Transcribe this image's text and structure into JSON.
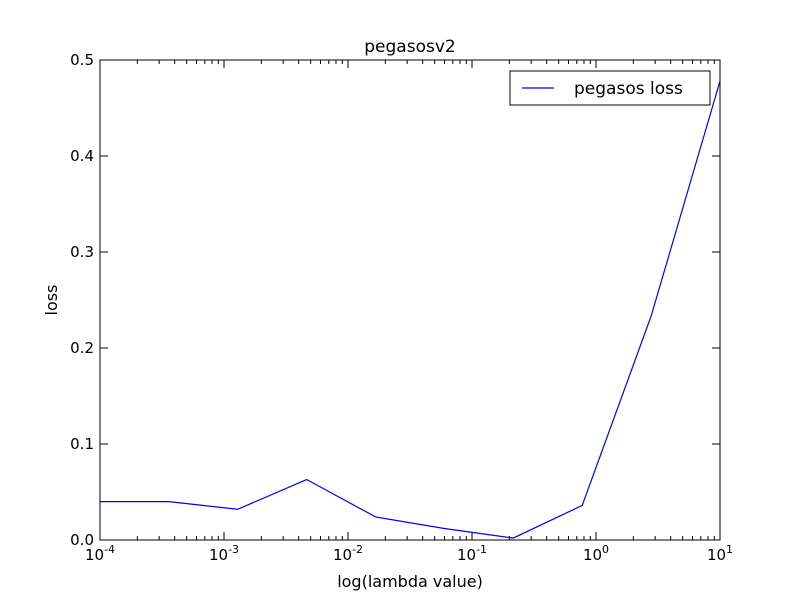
{
  "chart_data": {
    "type": "line",
    "title": "pegasosv2",
    "xlabel": "log(lambda value)",
    "ylabel": "loss",
    "xscale": "log",
    "xlim": [
      0.0001,
      10
    ],
    "ylim": [
      0.0,
      0.5
    ],
    "grid": false,
    "legend_position": "top-right",
    "x_ticks": [
      {
        "value": 0.0001,
        "base": "10",
        "exp": "-4"
      },
      {
        "value": 0.001,
        "base": "10",
        "exp": "-3"
      },
      {
        "value": 0.01,
        "base": "10",
        "exp": "-2"
      },
      {
        "value": 0.1,
        "base": "10",
        "exp": "-1"
      },
      {
        "value": 1,
        "base": "10",
        "exp": "0"
      },
      {
        "value": 10,
        "base": "10",
        "exp": "1"
      }
    ],
    "y_ticks": [
      {
        "value": 0.0,
        "label": "0.0"
      },
      {
        "value": 0.1,
        "label": "0.1"
      },
      {
        "value": 0.2,
        "label": "0.2"
      },
      {
        "value": 0.3,
        "label": "0.3"
      },
      {
        "value": 0.4,
        "label": "0.4"
      },
      {
        "value": 0.5,
        "label": "0.5"
      }
    ],
    "series": [
      {
        "name": "pegasos loss",
        "color": "#0000ff",
        "x": [
          0.0001,
          0.000359,
          0.00129,
          0.00464,
          0.0167,
          0.0599,
          0.215,
          0.774,
          2.78,
          10
        ],
        "y": [
          0.04,
          0.04,
          0.032,
          0.063,
          0.024,
          0.012,
          0.002,
          0.036,
          0.233,
          0.478
        ]
      }
    ]
  }
}
